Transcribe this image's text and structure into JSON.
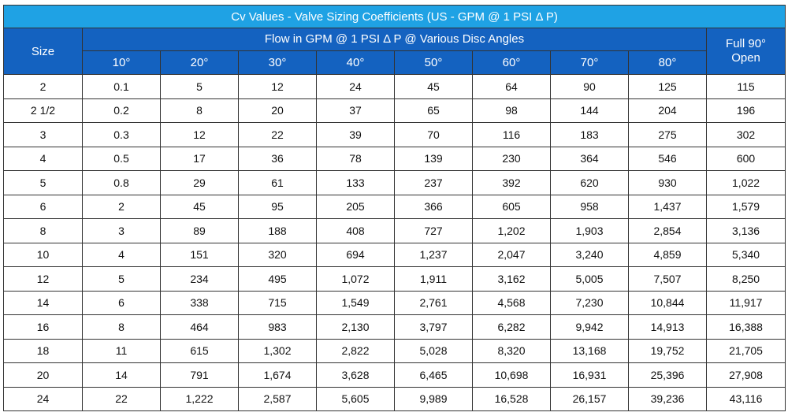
{
  "table": {
    "title": "Cv Values - Valve Sizing Coefficients  (US - GPM @ 1 PSI Δ P)",
    "size_header": "Size",
    "flow_header": "Flow in GPM @ 1 PSI Δ P @ Various Disc Angles",
    "full_header_line1": "Full 90°",
    "full_header_line2": "Open",
    "angles": [
      "10°",
      "20°",
      "30°",
      "40°",
      "50°",
      "60°",
      "70°",
      "80°"
    ],
    "rows": [
      [
        "2",
        "0.1",
        "5",
        "12",
        "24",
        "45",
        "64",
        "90",
        "125",
        "115"
      ],
      [
        "2 1/2",
        "0.2",
        "8",
        "20",
        "37",
        "65",
        "98",
        "144",
        "204",
        "196"
      ],
      [
        "3",
        "0.3",
        "12",
        "22",
        "39",
        "70",
        "116",
        "183",
        "275",
        "302"
      ],
      [
        "4",
        "0.5",
        "17",
        "36",
        "78",
        "139",
        "230",
        "364",
        "546",
        "600"
      ],
      [
        "5",
        "0.8",
        "29",
        "61",
        "133",
        "237",
        "392",
        "620",
        "930",
        "1,022"
      ],
      [
        "6",
        "2",
        "45",
        "95",
        "205",
        "366",
        "605",
        "958",
        "1,437",
        "1,579"
      ],
      [
        "8",
        "3",
        "89",
        "188",
        "408",
        "727",
        "1,202",
        "1,903",
        "2,854",
        "3,136"
      ],
      [
        "10",
        "4",
        "151",
        "320",
        "694",
        "1,237",
        "2,047",
        "3,240",
        "4,859",
        "5,340"
      ],
      [
        "12",
        "5",
        "234",
        "495",
        "1,072",
        "1,911",
        "3,162",
        "5,005",
        "7,507",
        "8,250"
      ],
      [
        "14",
        "6",
        "338",
        "715",
        "1,549",
        "2,761",
        "4,568",
        "7,230",
        "10,844",
        "11,917"
      ],
      [
        "16",
        "8",
        "464",
        "983",
        "2,130",
        "3,797",
        "6,282",
        "9,942",
        "14,913",
        "16,388"
      ],
      [
        "18",
        "11",
        "615",
        "1,302",
        "2,822",
        "5,028",
        "8,320",
        "13,168",
        "19,752",
        "21,705"
      ],
      [
        "20",
        "14",
        "791",
        "1,674",
        "3,628",
        "6,465",
        "10,698",
        "16,931",
        "25,396",
        "27,908"
      ],
      [
        "24",
        "22",
        "1,222",
        "2,587",
        "5,605",
        "9,989",
        "16,528",
        "26,157",
        "39,236",
        "43,116"
      ]
    ]
  },
  "colors": {
    "title_bg": "#1fa2e4",
    "header_bg": "#1462c0",
    "header_text": "#ffffff",
    "border": "#333333"
  }
}
